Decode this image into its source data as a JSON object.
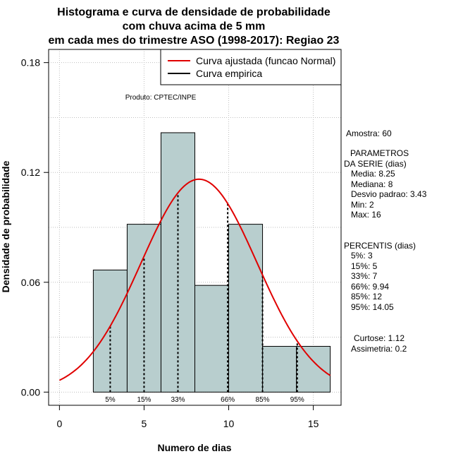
{
  "chart_data": {
    "type": "histogram",
    "title_lines": [
      "Histograma e curva de densidade de probabilidade",
      "com chuva acima de 5 mm",
      "em cada mes do trimestre ASO (1998-2017): Regiao 23"
    ],
    "xlabel": "Numero de dias",
    "ylabel": "Densidade de probabilidade",
    "xlim": [
      -0.64,
      16.64
    ],
    "ylim": [
      -0.0072,
      0.1872
    ],
    "x_ticks": [
      0,
      5,
      10,
      15
    ],
    "y_ticks": [
      0.0,
      0.06,
      0.12,
      0.18
    ],
    "y_tick_labels": [
      "0.00",
      "0.06",
      "0.12",
      "0.18"
    ],
    "grid": true,
    "bins": [
      {
        "x0": 2,
        "x1": 4,
        "density": 0.0667
      },
      {
        "x0": 4,
        "x1": 6,
        "density": 0.0917
      },
      {
        "x0": 6,
        "x1": 8,
        "density": 0.1417
      },
      {
        "x0": 8,
        "x1": 10,
        "density": 0.0583
      },
      {
        "x0": 10,
        "x1": 12,
        "density": 0.0917
      },
      {
        "x0": 12,
        "x1": 14,
        "density": 0.025
      },
      {
        "x0": 14,
        "x1": 16,
        "density": 0.025
      }
    ],
    "normal_fit": {
      "mean": 8.25,
      "sd": 3.43,
      "x_from": 0,
      "x_to": 16
    },
    "percentile_lines": [
      {
        "label": "5%",
        "value": 3
      },
      {
        "label": "15%",
        "value": 5
      },
      {
        "label": "33%",
        "value": 7
      },
      {
        "label": "66%",
        "value": 9.94
      },
      {
        "label": "85%",
        "value": 12
      },
      {
        "label": "95%",
        "value": 14.05
      }
    ],
    "legend": {
      "position": "top-right",
      "entries": [
        {
          "label": "Curva ajustada (funcao Normal)",
          "color": "#e00000"
        },
        {
          "label": "Curva empirica",
          "color": "#000000"
        }
      ]
    },
    "annotation": "Produto: CPTEC/INPE",
    "colors": {
      "bar_fill": "#b8cece",
      "bar_stroke": "#000000",
      "grid": "#bebebe",
      "curve": "#e00000"
    }
  },
  "stats_panel": {
    "sample": "Amostra: 60",
    "params_title_1": "PARAMETROS",
    "params_title_2": "DA SERIE (dias)",
    "params": [
      "Media: 8.25",
      "Mediana: 8",
      "Desvio padrao: 3.43",
      "Min: 2",
      "Max: 16"
    ],
    "percentis_title": "PERCENTIS (dias)",
    "percentis": [
      "5%: 3",
      "15%: 5",
      "33%: 7",
      "66%: 9.94",
      "85%: 12",
      "95%: 14.05"
    ],
    "curtose": "Curtose: 1.12",
    "assimetria": "Assimetria: 0.2"
  }
}
